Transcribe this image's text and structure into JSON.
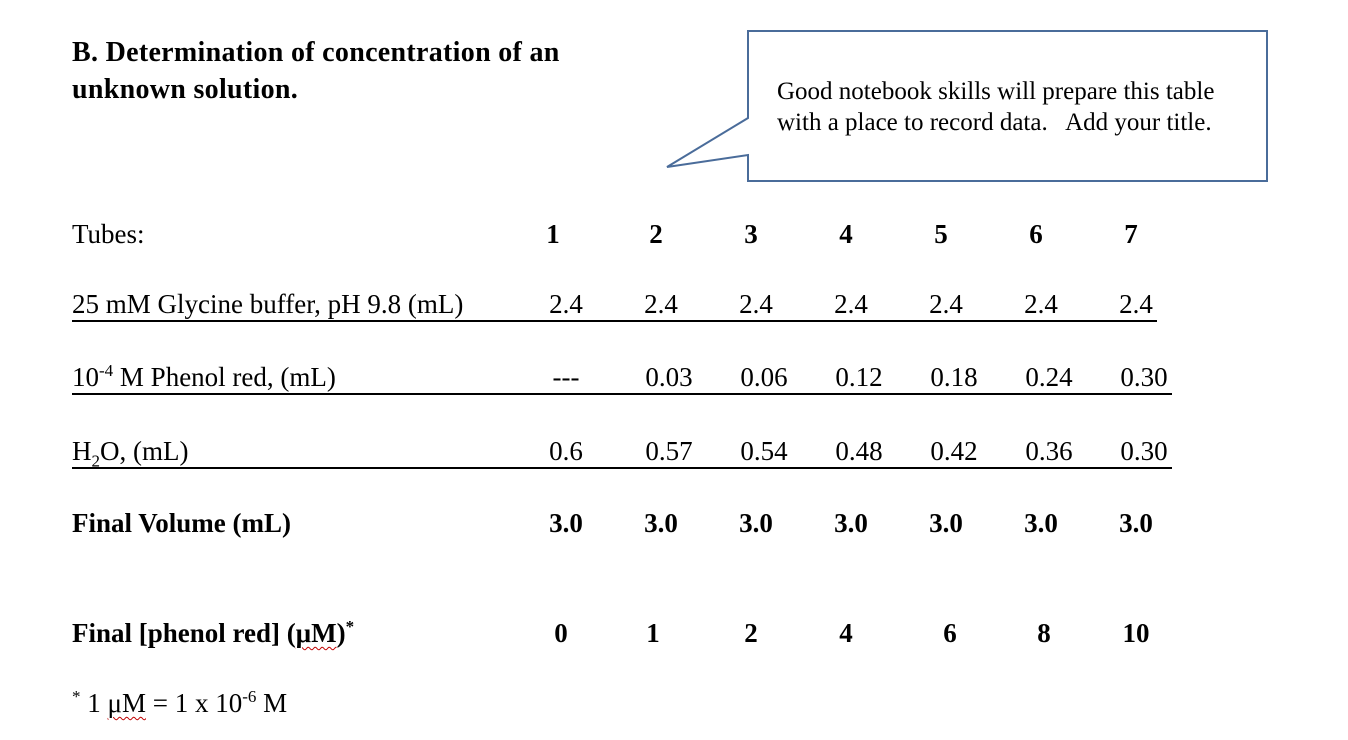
{
  "section": {
    "heading_line1": "B. Determination of concentration of an",
    "heading_line2": "unknown solution."
  },
  "callout": {
    "line1": "Good notebook skills will prepare this table",
    "line2": "with a place to record data.   Add your title.",
    "border_color": "#4a6c9a"
  },
  "table": {
    "tubes_label": "Tubes:",
    "tubes": [
      "1",
      "2",
      "3",
      "4",
      "5",
      "6",
      "7"
    ],
    "glycine": {
      "label": "25 mM Glycine buffer, pH 9.8 (mL)",
      "values": [
        "2.4",
        "2.4",
        "2.4",
        "2.4",
        "2.4",
        "2.4",
        "2.4"
      ]
    },
    "phenol": {
      "label_base": "10",
      "label_exp": "-4",
      "label_rest": " M Phenol red, (mL)",
      "values": [
        "---",
        "0.03",
        "0.06",
        "0.12",
        "0.18",
        "0.24",
        "0.30"
      ]
    },
    "water": {
      "label_h": "H",
      "label_sub": "2",
      "label_rest": "O, (mL)",
      "values": [
        "0.6",
        "0.57",
        "0.54",
        "0.48",
        "0.42",
        "0.36",
        "0.30"
      ]
    },
    "final_volume": {
      "label": "Final Volume (mL)",
      "values": [
        "3.0",
        "3.0",
        "3.0",
        "3.0",
        "3.0",
        "3.0",
        "3.0"
      ]
    },
    "final_phenol": {
      "label_pre": "Final [phenol red] (",
      "label_unit": "μM",
      "label_post": ")",
      "label_star": "*",
      "values": [
        "0",
        "1",
        "2",
        "4",
        "6",
        "8",
        "10"
      ]
    }
  },
  "footnote": {
    "star": "*",
    "pre": " 1 ",
    "unit": "μM",
    "mid": " = 1 x 10",
    "exp": "-6",
    "post": " M"
  }
}
